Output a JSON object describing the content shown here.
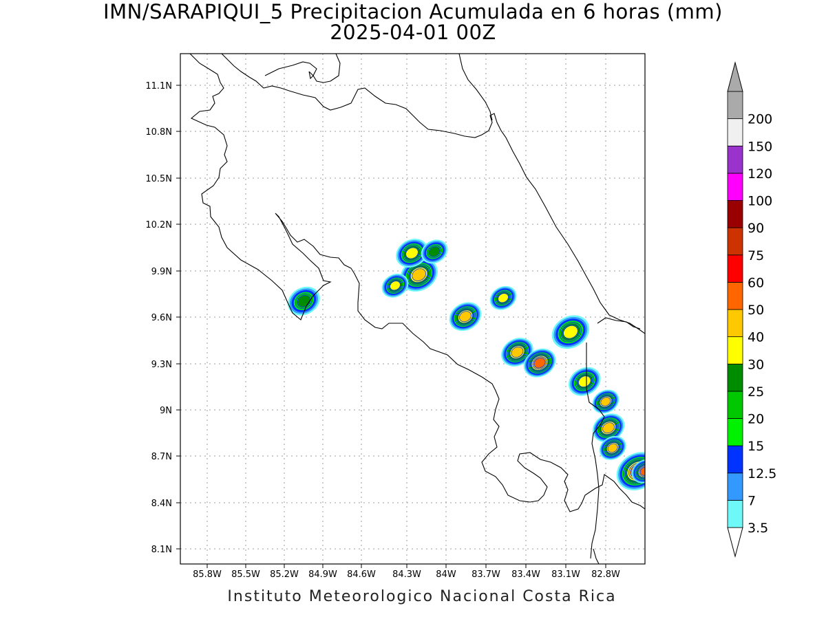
{
  "title": {
    "line1": "IMN/SARAPIQUI_5 Precipitacion Acumulada en 6 horas (mm)",
    "line2": "2025-04-01 00Z"
  },
  "footer": "Instituto Meteorologico Nacional Costa Rica",
  "axes": {
    "x_ticks": [
      "85.8W",
      "85.5W",
      "85.2W",
      "84.9W",
      "84.6W",
      "84.3W",
      "84W",
      "83.7W",
      "83.4W",
      "83.1W",
      "82.8W"
    ],
    "y_ticks": [
      "11.1N",
      "10.8N",
      "10.5N",
      "10.2N",
      "9.9N",
      "9.6N",
      "9.3N",
      "9N",
      "8.7N",
      "8.4N",
      "8.1N"
    ],
    "lon_range": [
      -85.98,
      -82.67
    ],
    "lat_range": [
      8.0,
      11.3
    ],
    "grid": true
  },
  "colorbar": {
    "unit": "mm",
    "labels": [
      "3.5",
      "7",
      "12.5",
      "15",
      "20",
      "25",
      "30",
      "40",
      "50",
      "60",
      "75",
      "90",
      "100",
      "120",
      "150",
      "200"
    ],
    "colors": [
      "#6ff8f8",
      "#3399ff",
      "#0033ff",
      "#00f200",
      "#00c800",
      "#008c00",
      "#ffff00",
      "#ffc800",
      "#ff6600",
      "#ff0000",
      "#cc3300",
      "#990000",
      "#ff00ff",
      "#9933cc",
      "#f0f0f0",
      "#aaaaaa"
    ],
    "under_color": "#ffffff",
    "over_color": "#aaaaaa"
  },
  "precip_cells": [
    {
      "lon": -85.1,
      "lat": 9.7,
      "mm": 28,
      "r": 0.06
    },
    {
      "lon": -84.28,
      "lat": 9.87,
      "mm": 48,
      "r": 0.07
    },
    {
      "lon": -84.45,
      "lat": 9.8,
      "mm": 38,
      "r": 0.05
    },
    {
      "lon": -84.33,
      "lat": 10.01,
      "mm": 30,
      "r": 0.06
    },
    {
      "lon": -84.17,
      "lat": 10.02,
      "mm": 25,
      "r": 0.05
    },
    {
      "lon": -83.95,
      "lat": 9.6,
      "mm": 45,
      "r": 0.06
    },
    {
      "lon": -83.68,
      "lat": 9.72,
      "mm": 38,
      "r": 0.05
    },
    {
      "lon": -83.58,
      "lat": 9.37,
      "mm": 40,
      "r": 0.06
    },
    {
      "lon": -83.42,
      "lat": 9.3,
      "mm": 52,
      "r": 0.06
    },
    {
      "lon": -83.2,
      "lat": 9.5,
      "mm": 35,
      "r": 0.07
    },
    {
      "lon": -83.1,
      "lat": 9.18,
      "mm": 32,
      "r": 0.06
    },
    {
      "lon": -82.95,
      "lat": 9.05,
      "mm": 45,
      "r": 0.05
    },
    {
      "lon": -82.93,
      "lat": 8.88,
      "mm": 42,
      "r": 0.06
    },
    {
      "lon": -82.9,
      "lat": 8.75,
      "mm": 40,
      "r": 0.05
    },
    {
      "lon": -82.72,
      "lat": 8.6,
      "mm": 58,
      "r": 0.08
    },
    {
      "lon": -82.67,
      "lat": 8.6,
      "mm": 52,
      "r": 0.05
    }
  ]
}
